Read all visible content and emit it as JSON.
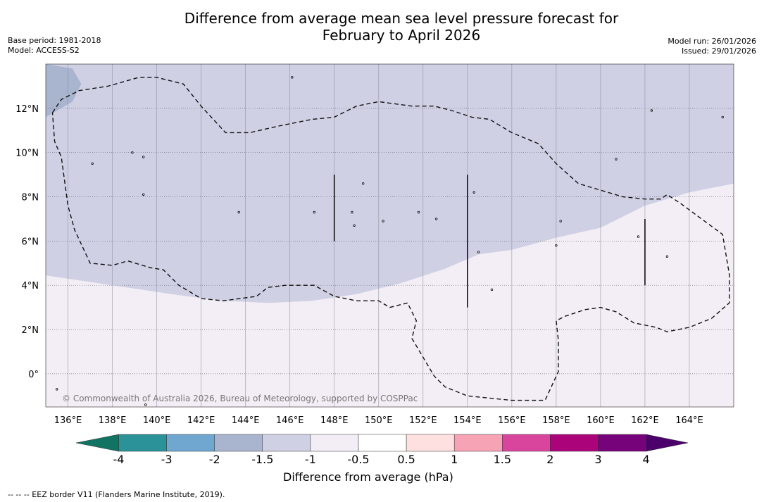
{
  "title_line1": "Difference from average mean sea level pressure forecast for",
  "title_line2": "February to April 2026",
  "base_period": "Base period: 1981-2018",
  "model": "Model: ACCESS-S2",
  "model_run": "Model run: 26/01/2026",
  "issued": "Issued: 29/01/2026",
  "copyright": "© Commonwealth of Australia 2026, Bureau of Meteorology, supported by COSPPac",
  "footnote": "--  --  -- EEZ border V11 (Flanders Marine Institute, 2019).",
  "colorbar": {
    "label": "Difference from average (hPa)",
    "tick_labels": [
      "-4",
      "-3",
      "-2",
      "-1.5",
      "-1",
      "-0.5",
      "0.5",
      "1",
      "1.5",
      "2",
      "3",
      "4"
    ],
    "colors": [
      "#117463",
      "#2a9298",
      "#6fa7d0",
      "#a9b4cf",
      "#cfd0e4",
      "#f3eef5",
      "#ffffff",
      "#fde0df",
      "#f6a3b6",
      "#d9449c",
      "#ab047b",
      "#77037a",
      "#4b006c"
    ]
  },
  "map": {
    "lon_range": [
      135,
      166
    ],
    "lat_range": [
      -1.5,
      14
    ],
    "lon_ticks": [
      136,
      138,
      140,
      142,
      144,
      146,
      148,
      150,
      152,
      154,
      156,
      158,
      160,
      162,
      164
    ],
    "lat_ticks": [
      12,
      10,
      8,
      6,
      4,
      2,
      0
    ],
    "lon_tick_labels": [
      "136°E",
      "138°E",
      "140°E",
      "142°E",
      "144°E",
      "146°E",
      "148°E",
      "150°E",
      "152°E",
      "154°E",
      "156°E",
      "158°E",
      "160°E",
      "162°E",
      "164°E"
    ],
    "lat_tick_labels": [
      "12°N",
      "10°N",
      "8°N",
      "6°N",
      "4°N",
      "2°N",
      "0°"
    ],
    "category_colors": {
      "minus_2_to_minus_1_5": "#a9b4cf",
      "minus_1_5_to_minus_1": "#cfd0e4",
      "minus_1_to_minus_0_5": "#f3eef5"
    },
    "zone_boundary": [
      [
        135,
        4.45
      ],
      [
        137,
        4.15
      ],
      [
        139,
        3.85
      ],
      [
        141,
        3.55
      ],
      [
        143,
        3.3
      ],
      [
        145,
        3.2
      ],
      [
        147,
        3.3
      ],
      [
        149,
        3.6
      ],
      [
        151,
        4.1
      ],
      [
        153,
        4.75
      ],
      [
        154.5,
        5.4
      ],
      [
        156,
        5.6
      ],
      [
        158,
        6.15
      ],
      [
        160,
        6.6
      ],
      [
        162,
        7.6
      ],
      [
        164,
        8.2
      ],
      [
        166,
        8.6
      ]
    ],
    "darker_region": [
      [
        135,
        14
      ],
      [
        136.2,
        13.8
      ],
      [
        136.6,
        13.1
      ],
      [
        136.2,
        12.3
      ],
      [
        135,
        11.6
      ]
    ],
    "eez_paths": [
      [
        [
          135.3,
          11.8
        ],
        [
          135.7,
          12.4
        ],
        [
          136.5,
          12.8
        ],
        [
          137.8,
          13
        ],
        [
          139.2,
          13.4
        ],
        [
          140,
          13.4
        ],
        [
          141.2,
          13.1
        ],
        [
          142,
          12.1
        ],
        [
          143.1,
          10.9
        ],
        [
          144.2,
          10.9
        ],
        [
          145.5,
          11.2
        ],
        [
          147,
          11.5
        ],
        [
          148,
          11.6
        ],
        [
          149,
          12.1
        ],
        [
          150,
          12.3
        ],
        [
          151.5,
          12.1
        ],
        [
          152.5,
          12.1
        ],
        [
          153.3,
          11.9
        ],
        [
          154.2,
          11.6
        ],
        [
          155,
          11.5
        ],
        [
          156,
          10.9
        ],
        [
          157.2,
          10.4
        ],
        [
          158,
          9.5
        ],
        [
          159,
          8.6
        ],
        [
          160,
          8.3
        ],
        [
          161,
          8
        ],
        [
          162,
          7.9
        ],
        [
          162.7,
          7.9
        ],
        [
          163,
          8.1
        ],
        [
          163.6,
          7.7
        ],
        [
          165.5,
          6.3
        ],
        [
          165.8,
          4.5
        ],
        [
          165.8,
          3.2
        ],
        [
          165,
          2.5
        ],
        [
          164,
          2.1
        ],
        [
          163,
          1.9
        ],
        [
          162.5,
          2.1
        ],
        [
          161.5,
          2.3
        ],
        [
          160.7,
          2.8
        ],
        [
          160,
          3
        ],
        [
          159.3,
          2.9
        ],
        [
          158.4,
          2.6
        ],
        [
          158,
          2.4
        ],
        [
          158.1,
          1.5
        ],
        [
          158.1,
          0.1
        ],
        [
          157.5,
          -1.2
        ],
        [
          156,
          -1.2
        ],
        [
          154,
          -1
        ],
        [
          153,
          -0.6
        ],
        [
          152.5,
          -0.1
        ],
        [
          151.5,
          1.6
        ],
        [
          151.7,
          2.4
        ],
        [
          151.3,
          3.2
        ],
        [
          150.5,
          3
        ],
        [
          150,
          3.3
        ],
        [
          149,
          3.3
        ],
        [
          148,
          3.5
        ],
        [
          147.1,
          4
        ],
        [
          146.5,
          4
        ],
        [
          145.8,
          4
        ],
        [
          145,
          3.9
        ],
        [
          144.5,
          3.5
        ],
        [
          143,
          3.3
        ],
        [
          142,
          3.4
        ],
        [
          141,
          4
        ],
        [
          140.3,
          4.7
        ],
        [
          139.7,
          4.8
        ],
        [
          138.7,
          5.1
        ],
        [
          138,
          4.9
        ],
        [
          137,
          5
        ],
        [
          136.3,
          6.5
        ],
        [
          136,
          7.6
        ],
        [
          135.7,
          9.8
        ],
        [
          135.4,
          10.5
        ],
        [
          135.3,
          11.8
        ]
      ]
    ],
    "bars": [
      {
        "lon": 148,
        "lat_top": 9,
        "lat_bottom": 6
      },
      {
        "lon": 154,
        "lat_top": 9,
        "lat_bottom": 3
      },
      {
        "lon": 162,
        "lat_top": 7,
        "lat_bottom": 4
      }
    ],
    "islands": [
      {
        "lon": 146.1,
        "lat": 13.4
      },
      {
        "lon": 137.1,
        "lat": 9.5
      },
      {
        "lon": 138.9,
        "lat": 10
      },
      {
        "lon": 139.4,
        "lat": 9.8
      },
      {
        "lon": 139.4,
        "lat": 8.1
      },
      {
        "lon": 143.7,
        "lat": 7.3
      },
      {
        "lon": 147.1,
        "lat": 7.3
      },
      {
        "lon": 148.8,
        "lat": 7.3
      },
      {
        "lon": 149.3,
        "lat": 8.6
      },
      {
        "lon": 148.9,
        "lat": 6.7
      },
      {
        "lon": 150.2,
        "lat": 6.9
      },
      {
        "lon": 151.8,
        "lat": 7.3
      },
      {
        "lon": 152.6,
        "lat": 7
      },
      {
        "lon": 154.3,
        "lat": 8.2
      },
      {
        "lon": 154.5,
        "lat": 5.5
      },
      {
        "lon": 155.1,
        "lat": 3.8
      },
      {
        "lon": 158.2,
        "lat": 6.9
      },
      {
        "lon": 158,
        "lat": 5.8
      },
      {
        "lon": 160.7,
        "lat": 9.7
      },
      {
        "lon": 161.7,
        "lat": 6.2
      },
      {
        "lon": 163,
        "lat": 5.3
      },
      {
        "lon": 162.3,
        "lat": 11.9
      },
      {
        "lon": 165.5,
        "lat": 11.6
      },
      {
        "lon": 135.5,
        "lat": -0.7
      },
      {
        "lon": 139.5,
        "lat": -1.4
      }
    ]
  }
}
